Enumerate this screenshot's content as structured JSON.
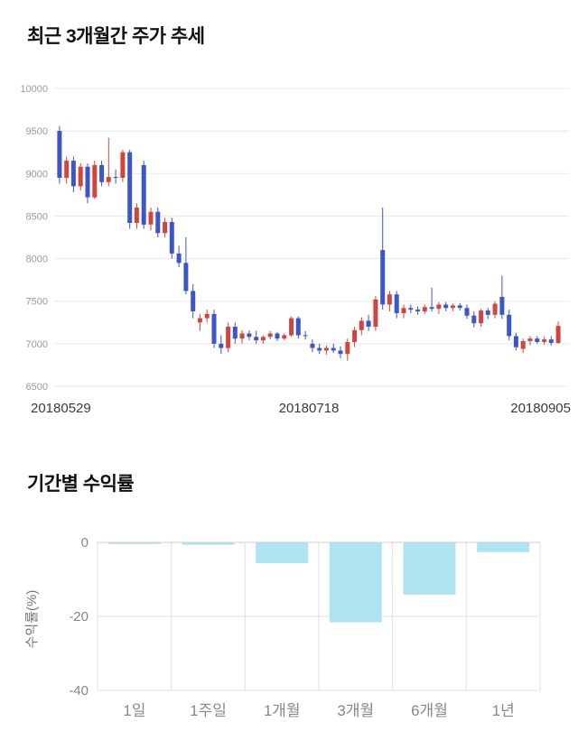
{
  "price_section": {
    "title": "최근 3개월간 주가 추세"
  },
  "returns_section": {
    "title": "기간별 수익률"
  },
  "chart_data": [
    {
      "type": "candlestick",
      "title": "최근 3개월간 주가 추세",
      "ylim": [
        6500,
        10000
      ],
      "yticks": [
        10000,
        9500,
        9000,
        8500,
        8000,
        7500,
        7000,
        6500
      ],
      "xticks": [
        "20180529",
        "20180718",
        "20180905"
      ],
      "up_color": "#d0453e",
      "down_color": "#3c55c8",
      "grid_color": "#e8e8e8",
      "ohlc_format": "open,high,low,close",
      "candles": [
        [
          9500,
          9560,
          8880,
          8950
        ],
        [
          8950,
          9200,
          8880,
          9150
        ],
        [
          9150,
          9200,
          8780,
          8850
        ],
        [
          8850,
          9120,
          8800,
          9080
        ],
        [
          9080,
          9120,
          8650,
          8720
        ],
        [
          8720,
          9150,
          8700,
          9100
        ],
        [
          9100,
          9150,
          8850,
          8900
        ],
        [
          8900,
          9420,
          8850,
          8960
        ],
        [
          8960,
          9050,
          8880,
          8950
        ],
        [
          8950,
          9280,
          8900,
          9250
        ],
        [
          9250,
          9280,
          8350,
          8420
        ],
        [
          8420,
          8650,
          8350,
          8600
        ],
        [
          9100,
          9150,
          8350,
          8400
        ],
        [
          8400,
          8600,
          8330,
          8550
        ],
        [
          8550,
          8600,
          8250,
          8300
        ],
        [
          8300,
          8480,
          8250,
          8430
        ],
        [
          8430,
          8480,
          8000,
          8060
        ],
        [
          8060,
          8150,
          7900,
          7950
        ],
        [
          7950,
          8250,
          7580,
          7620
        ],
        [
          7620,
          7700,
          7300,
          7380
        ],
        [
          7250,
          7350,
          7150,
          7300
        ],
        [
          7300,
          7400,
          7250,
          7350
        ],
        [
          7350,
          7400,
          6950,
          7000
        ],
        [
          7000,
          7100,
          6880,
          6950
        ],
        [
          6950,
          7250,
          6900,
          7200
        ],
        [
          7200,
          7250,
          7000,
          7060
        ],
        [
          7060,
          7160,
          7000,
          7120
        ],
        [
          7120,
          7160,
          7040,
          7080
        ],
        [
          7080,
          7150,
          7000,
          7040
        ],
        [
          7040,
          7100,
          7000,
          7080
        ],
        [
          7080,
          7150,
          7050,
          7120
        ],
        [
          7120,
          7140,
          7030,
          7060
        ],
        [
          7060,
          7120,
          7040,
          7100
        ],
        [
          7100,
          7320,
          7080,
          7300
        ],
        [
          7300,
          7320,
          7060,
          7100
        ],
        [
          7100,
          7150,
          7050,
          7090
        ],
        [
          7000,
          7050,
          6900,
          6950
        ],
        [
          6950,
          7000,
          6880,
          6920
        ],
        [
          6920,
          6980,
          6870,
          6950
        ],
        [
          6950,
          7000,
          6890,
          6920
        ],
        [
          6920,
          6970,
          6830,
          6880
        ],
        [
          6880,
          7060,
          6800,
          7020
        ],
        [
          7020,
          7200,
          6960,
          7160
        ],
        [
          7160,
          7310,
          7100,
          7270
        ],
        [
          7270,
          7340,
          7150,
          7200
        ],
        [
          7200,
          7560,
          7150,
          7520
        ],
        [
          8100,
          8600,
          7400,
          7460
        ],
        [
          7460,
          7620,
          7380,
          7580
        ],
        [
          7580,
          7620,
          7300,
          7360
        ],
        [
          7360,
          7460,
          7300,
          7420
        ],
        [
          7420,
          7460,
          7360,
          7400
        ],
        [
          7400,
          7440,
          7340,
          7380
        ],
        [
          7380,
          7460,
          7350,
          7430
        ],
        [
          7430,
          7660,
          7380,
          7410
        ],
        [
          7410,
          7490,
          7350,
          7460
        ],
        [
          7460,
          7490,
          7380,
          7420
        ],
        [
          7420,
          7470,
          7380,
          7450
        ],
        [
          7450,
          7480,
          7390,
          7420
        ],
        [
          7420,
          7460,
          7290,
          7330
        ],
        [
          7330,
          7380,
          7190,
          7240
        ],
        [
          7240,
          7410,
          7200,
          7390
        ],
        [
          7390,
          7420,
          7290,
          7340
        ],
        [
          7340,
          7500,
          7300,
          7470
        ],
        [
          7550,
          7800,
          7290,
          7340
        ],
        [
          7340,
          7400,
          7040,
          7090
        ],
        [
          7090,
          7130,
          6920,
          6960
        ],
        [
          6940,
          7060,
          6890,
          7030
        ],
        [
          7030,
          7090,
          6980,
          7060
        ],
        [
          7060,
          7090,
          7000,
          7020
        ],
        [
          7020,
          7080,
          6990,
          7050
        ],
        [
          7050,
          7090,
          6980,
          7010
        ],
        [
          7010,
          7260,
          7000,
          7210
        ]
      ]
    },
    {
      "type": "bar",
      "title": "기간별 수익률",
      "categories": [
        "1일",
        "1주일",
        "1개월",
        "3개월",
        "6개월",
        "1년"
      ],
      "values": [
        -0.3,
        -0.5,
        -5.5,
        -21.5,
        -14,
        -2.5
      ],
      "ylabel": "수익률(%)",
      "yticks": [
        0,
        -20,
        -40
      ],
      "ylim": [
        -40,
        0
      ],
      "legend": null,
      "grid": true,
      "bar_color": "#aee4f1",
      "grid_color": "#e0e0e0",
      "zero_line_color": "#cfcfcf"
    }
  ]
}
